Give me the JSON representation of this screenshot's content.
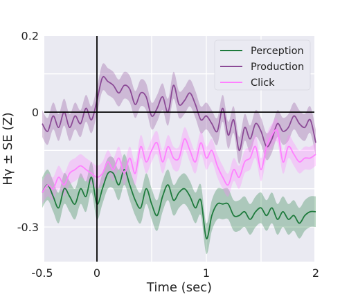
{
  "chart_data": {
    "type": "line",
    "xlabel": "Time (sec)",
    "ylabel": "Hγ ± SE (Z)",
    "xlim": [
      -0.5,
      2.0
    ],
    "ylim": [
      -0.39,
      0.2
    ],
    "x_ticks": [
      -0.5,
      0,
      1,
      2
    ],
    "x_tick_labels": [
      "-0.5",
      "0",
      "1",
      "2"
    ],
    "y_ticks": [
      0.2,
      0,
      -0.3
    ],
    "y_tick_labels": [
      "0.2",
      "0",
      "-0.3"
    ],
    "grid": true,
    "legend_position": "top-right",
    "reference_lines": {
      "x": 0,
      "y": 0
    },
    "series": [
      {
        "name": "Perception",
        "color": "#1e7a3c",
        "x": [
          -0.5,
          -0.45,
          -0.4,
          -0.35,
          -0.3,
          -0.25,
          -0.2,
          -0.15,
          -0.1,
          -0.05,
          0,
          0.05,
          0.1,
          0.15,
          0.2,
          0.25,
          0.3,
          0.35,
          0.4,
          0.45,
          0.5,
          0.55,
          0.6,
          0.65,
          0.7,
          0.75,
          0.8,
          0.85,
          0.9,
          0.95,
          1.0,
          1.05,
          1.1,
          1.15,
          1.2,
          1.25,
          1.3,
          1.35,
          1.4,
          1.45,
          1.5,
          1.55,
          1.6,
          1.65,
          1.7,
          1.75,
          1.8,
          1.85,
          1.9,
          1.95,
          2.0
        ],
        "y": [
          -0.21,
          -0.19,
          -0.22,
          -0.25,
          -0.2,
          -0.22,
          -0.24,
          -0.2,
          -0.22,
          -0.17,
          -0.24,
          -0.2,
          -0.16,
          -0.16,
          -0.19,
          -0.15,
          -0.19,
          -0.23,
          -0.25,
          -0.2,
          -0.24,
          -0.27,
          -0.22,
          -0.19,
          -0.23,
          -0.21,
          -0.2,
          -0.22,
          -0.25,
          -0.23,
          -0.33,
          -0.27,
          -0.24,
          -0.24,
          -0.24,
          -0.27,
          -0.27,
          -0.26,
          -0.28,
          -0.26,
          -0.25,
          -0.27,
          -0.25,
          -0.28,
          -0.26,
          -0.28,
          -0.27,
          -0.29,
          -0.27,
          -0.26,
          -0.26
        ],
        "se": 0.04
      },
      {
        "name": "Production",
        "color": "#8b4a96",
        "x": [
          -0.5,
          -0.45,
          -0.4,
          -0.35,
          -0.3,
          -0.25,
          -0.2,
          -0.15,
          -0.1,
          -0.05,
          0,
          0.05,
          0.1,
          0.15,
          0.2,
          0.25,
          0.3,
          0.35,
          0.4,
          0.45,
          0.5,
          0.55,
          0.6,
          0.65,
          0.7,
          0.75,
          0.8,
          0.85,
          0.9,
          0.95,
          1.0,
          1.05,
          1.1,
          1.15,
          1.2,
          1.25,
          1.3,
          1.35,
          1.4,
          1.45,
          1.5,
          1.55,
          1.6,
          1.65,
          1.7,
          1.75,
          1.8,
          1.85,
          1.9,
          1.95,
          2.0
        ],
        "y": [
          -0.03,
          -0.05,
          -0.01,
          -0.04,
          0.0,
          -0.04,
          -0.01,
          -0.03,
          0.01,
          -0.02,
          0.03,
          0.09,
          0.08,
          0.07,
          0.05,
          0.07,
          0.06,
          0.02,
          0.05,
          0.04,
          -0.01,
          0.01,
          0.04,
          0.0,
          0.07,
          0.02,
          0.03,
          0.05,
          0.02,
          -0.02,
          -0.01,
          -0.03,
          -0.05,
          0.01,
          -0.06,
          -0.02,
          -0.1,
          -0.04,
          -0.07,
          -0.03,
          -0.05,
          -0.09,
          -0.07,
          -0.03,
          -0.05,
          -0.04,
          -0.01,
          -0.03,
          -0.04,
          -0.02,
          -0.08
        ],
        "se": 0.035
      },
      {
        "name": "Click",
        "color": "#ff80ff",
        "x": [
          -0.5,
          -0.45,
          -0.4,
          -0.35,
          -0.3,
          -0.25,
          -0.2,
          -0.15,
          -0.1,
          -0.05,
          0,
          0.05,
          0.1,
          0.15,
          0.2,
          0.25,
          0.3,
          0.35,
          0.4,
          0.45,
          0.5,
          0.55,
          0.6,
          0.65,
          0.7,
          0.75,
          0.8,
          0.85,
          0.9,
          0.95,
          1.0,
          1.05,
          1.1,
          1.15,
          1.2,
          1.25,
          1.3,
          1.35,
          1.4,
          1.45,
          1.5,
          1.55,
          1.6,
          1.65,
          1.7,
          1.75,
          1.8,
          1.85,
          1.9,
          1.95,
          2.0
        ],
        "y": [
          -0.21,
          -0.19,
          -0.2,
          -0.17,
          -0.19,
          -0.16,
          -0.15,
          -0.14,
          -0.15,
          -0.16,
          -0.17,
          -0.16,
          -0.13,
          -0.15,
          -0.12,
          -0.16,
          -0.12,
          -0.16,
          -0.09,
          -0.13,
          -0.1,
          -0.08,
          -0.13,
          -0.09,
          -0.12,
          -0.12,
          -0.07,
          -0.1,
          -0.13,
          -0.08,
          -0.12,
          -0.1,
          -0.14,
          -0.17,
          -0.19,
          -0.15,
          -0.17,
          -0.13,
          -0.12,
          -0.09,
          -0.15,
          -0.09,
          -0.06,
          -0.05,
          -0.13,
          -0.09,
          -0.11,
          -0.13,
          -0.12,
          -0.12,
          -0.11
        ],
        "se": 0.03
      }
    ]
  }
}
